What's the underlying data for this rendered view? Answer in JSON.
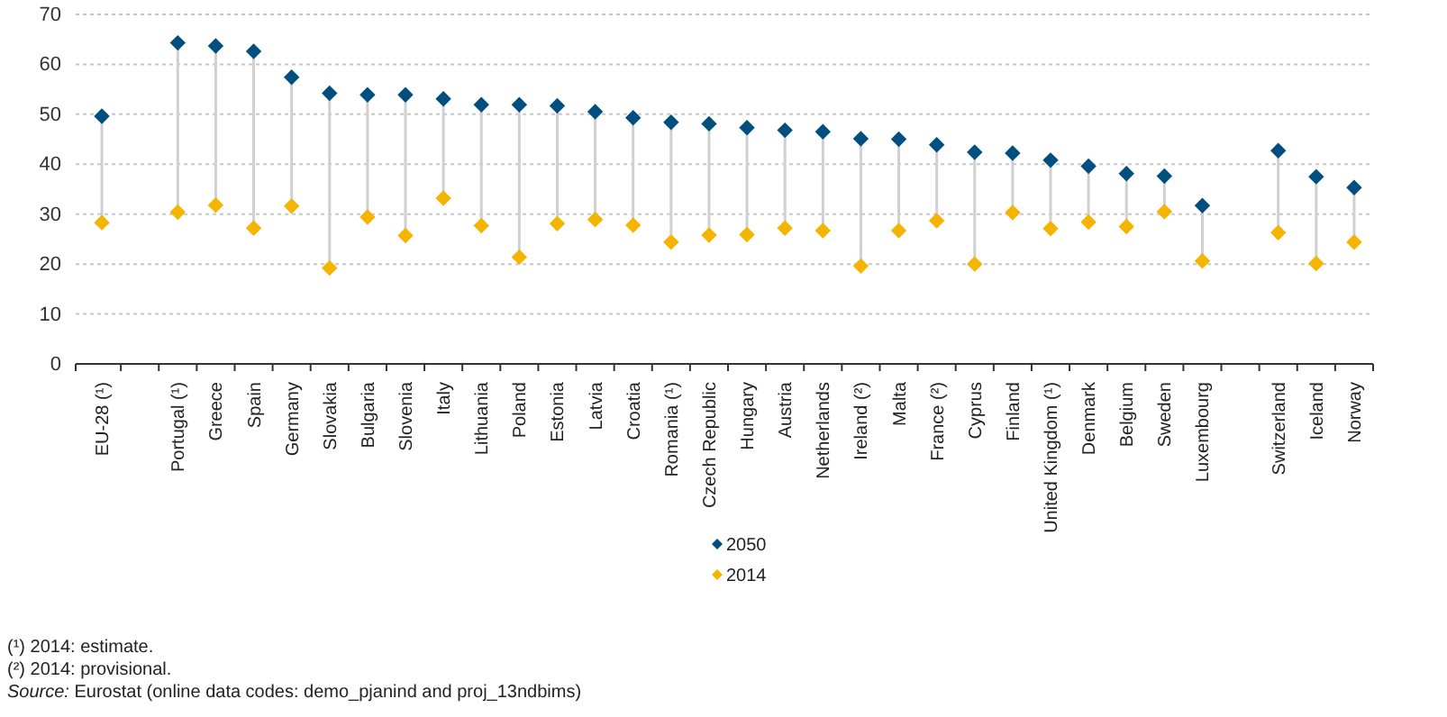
{
  "chart_data": {
    "type": "scatter",
    "categories": [
      "EU-28 (¹)",
      null,
      "Portugal (¹)",
      "Greece",
      "Spain",
      "Germany",
      "Slovakia",
      "Bulgaria",
      "Slovenia",
      "Italy",
      "Lithuania",
      "Poland",
      "Estonia",
      "Latvia",
      "Croatia",
      "Romania (¹)",
      "Czech Republic",
      "Hungary",
      "Austria",
      "Netherlands",
      "Ireland (²)",
      "Malta",
      "France (²)",
      "Cyprus",
      "Finland",
      "United Kingdom (¹)",
      "Denmark",
      "Belgium",
      "Sweden",
      "Luxembourg",
      null,
      "Switzerland",
      "Iceland",
      "Norway"
    ],
    "series": [
      {
        "name": "2050",
        "color": "#004f7f",
        "values": [
          49.6,
          null,
          64.3,
          63.7,
          62.6,
          57.4,
          54.2,
          53.9,
          53.9,
          53.1,
          51.9,
          51.9,
          51.7,
          50.5,
          49.3,
          48.4,
          48.1,
          47.3,
          46.8,
          46.5,
          45.1,
          45.0,
          43.9,
          42.4,
          42.2,
          40.8,
          39.6,
          38.1,
          37.6,
          31.7,
          null,
          42.7,
          37.5,
          35.3
        ]
      },
      {
        "name": "2014",
        "color": "#f5b400",
        "values": [
          28.3,
          null,
          30.4,
          31.8,
          27.2,
          31.6,
          19.2,
          29.4,
          25.7,
          33.2,
          27.7,
          21.4,
          28.1,
          28.9,
          27.8,
          24.4,
          25.8,
          25.9,
          27.2,
          26.7,
          19.6,
          26.7,
          28.7,
          20.0,
          30.3,
          27.1,
          28.4,
          27.5,
          30.5,
          20.6,
          null,
          26.3,
          20.1,
          24.4
        ]
      }
    ],
    "ylim": [
      0,
      70
    ],
    "yticks": [
      0,
      10,
      20,
      30,
      40,
      50,
      60,
      70
    ],
    "grid": "y",
    "legend": "bottom",
    "marker": "diamond",
    "annotations": [
      "(¹) 2014: estimate.",
      "(²) 2014: provisional.",
      "Source: Eurostat (online data codes: demo_pjanind and proj_13ndbims)"
    ]
  }
}
